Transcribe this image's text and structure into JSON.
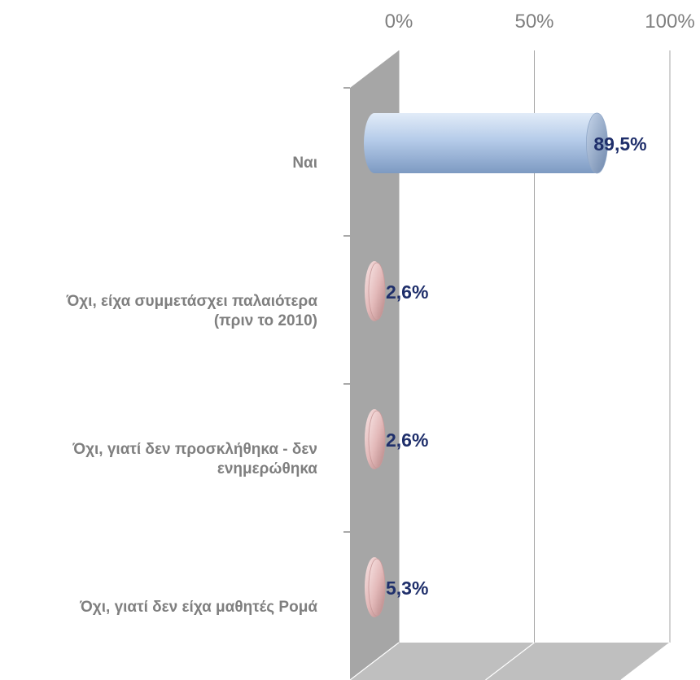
{
  "chart_data": {
    "type": "bar",
    "orientation": "horizontal",
    "three_d": true,
    "categories": [
      "Ναι",
      "Όχι, είχα συμμετάσχει παλαιότερα (πριν το 2010)",
      "Όχι, γιατί δεν προσκλήθηκα - δεν ενημερώθηκα",
      "Όχι, γιατί δεν είχα μαθητές Ρομά"
    ],
    "category_lines": [
      [
        "Ναι"
      ],
      [
        "Όχι, είχα συμμετάσχει παλαιότερα",
        "(πριν το 2010)"
      ],
      [
        "Όχι, γιατί δεν προσκλήθηκα - δεν",
        "ενημερώθηκα"
      ],
      [
        "Όχι, γιατί δεν είχα μαθητές Ρομά"
      ]
    ],
    "values": [
      89.5,
      2.6,
      2.6,
      5.3
    ],
    "data_labels": [
      "89,5%",
      "2,6%",
      "2,6%",
      "5,3%"
    ],
    "value_axis": {
      "min": 0,
      "max": 100,
      "ticks": [
        0,
        50,
        100
      ],
      "tick_labels": [
        "0%",
        "50%",
        "100%"
      ],
      "position": "top"
    },
    "grid": true,
    "legend": false,
    "title": "",
    "xlabel": "",
    "ylabel": "",
    "colors": {
      "first_bar": "#a9c4e6",
      "other_bars": "#e6bcbc",
      "data_label": "#1f2f6b",
      "axis_text": "#7f7f7f",
      "left_wall": "#a6a6a6",
      "floor": "#bfbfbf",
      "grid": "#a6a6a6"
    }
  }
}
